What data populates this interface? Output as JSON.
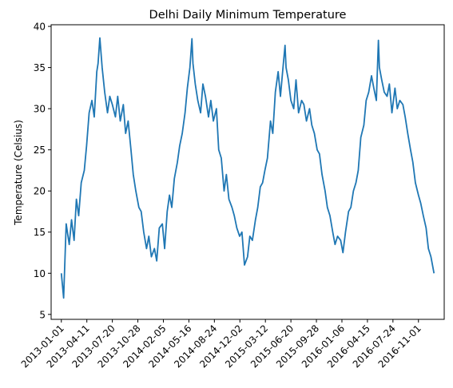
{
  "chart_data": {
    "type": "line",
    "title": "Delhi Daily Minimum Temperature",
    "xlabel": "",
    "ylabel": "Temperature (Celsius)",
    "xlim": [
      "2012-11-22",
      "2017-02-10"
    ],
    "ylim": [
      4.4,
      40.2
    ],
    "grid": false,
    "line_color": "#1f77b4",
    "x_ticks": [
      "2013-01-01",
      "2013-04-11",
      "2013-07-20",
      "2013-10-28",
      "2014-02-05",
      "2014-05-16",
      "2014-08-24",
      "2014-12-02",
      "2015-03-12",
      "2015-06-20",
      "2015-09-28",
      "2016-01-06",
      "2016-04-15",
      "2016-07-24",
      "2016-11-01"
    ],
    "y_ticks": [
      5,
      10,
      15,
      20,
      25,
      30,
      35,
      40
    ],
    "series": [
      {
        "x": [
          "2013-01-01",
          "2013-01-10",
          "2013-01-20",
          "2013-02-01",
          "2013-02-10",
          "2013-02-20",
          "2013-03-01",
          "2013-03-10",
          "2013-03-20",
          "2013-04-01",
          "2013-04-10",
          "2013-04-20",
          "2013-05-01",
          "2013-05-10",
          "2013-05-20",
          "2013-05-25",
          "2013-06-01",
          "2013-06-10",
          "2013-06-20",
          "2013-07-01",
          "2013-07-10",
          "2013-07-20",
          "2013-08-01",
          "2013-08-10",
          "2013-08-20",
          "2013-09-01",
          "2013-09-10",
          "2013-09-20",
          "2013-10-01",
          "2013-10-10",
          "2013-10-20",
          "2013-11-01",
          "2013-11-10",
          "2013-11-20",
          "2013-12-01",
          "2013-12-10",
          "2013-12-20",
          "2014-01-01",
          "2014-01-10",
          "2014-01-20",
          "2014-02-01",
          "2014-02-10",
          "2014-02-20",
          "2014-03-01",
          "2014-03-10",
          "2014-03-20",
          "2014-04-01",
          "2014-04-10",
          "2014-04-20",
          "2014-05-01",
          "2014-05-10",
          "2014-05-20",
          "2014-05-28",
          "2014-06-01",
          "2014-06-10",
          "2014-06-20",
          "2014-07-01",
          "2014-07-10",
          "2014-07-20",
          "2014-08-01",
          "2014-08-10",
          "2014-08-20",
          "2014-09-01",
          "2014-09-10",
          "2014-09-20",
          "2014-10-01",
          "2014-10-10",
          "2014-10-20",
          "2014-11-01",
          "2014-11-10",
          "2014-11-20",
          "2014-12-01",
          "2014-12-10",
          "2014-12-20",
          "2015-01-01",
          "2015-01-10",
          "2015-01-20",
          "2015-02-01",
          "2015-02-10",
          "2015-02-20",
          "2015-03-01",
          "2015-03-10",
          "2015-03-20",
          "2015-04-01",
          "2015-04-10",
          "2015-04-20",
          "2015-05-01",
          "2015-05-10",
          "2015-05-20",
          "2015-05-28",
          "2015-06-01",
          "2015-06-10",
          "2015-06-20",
          "2015-07-01",
          "2015-07-10",
          "2015-07-20",
          "2015-08-01",
          "2015-08-10",
          "2015-08-20",
          "2015-09-01",
          "2015-09-10",
          "2015-09-20",
          "2015-10-01",
          "2015-10-10",
          "2015-10-20",
          "2015-11-01",
          "2015-11-10",
          "2015-11-20",
          "2015-12-01",
          "2015-12-10",
          "2015-12-20",
          "2016-01-01",
          "2016-01-10",
          "2016-01-20",
          "2016-02-01",
          "2016-02-10",
          "2016-02-20",
          "2016-03-01",
          "2016-03-10",
          "2016-03-20",
          "2016-04-01",
          "2016-04-10",
          "2016-04-20",
          "2016-05-01",
          "2016-05-10",
          "2016-05-20",
          "2016-05-28",
          "2016-06-01",
          "2016-06-10",
          "2016-06-20",
          "2016-07-01",
          "2016-07-10",
          "2016-07-20",
          "2016-08-01",
          "2016-08-10",
          "2016-08-20",
          "2016-09-01",
          "2016-09-10",
          "2016-09-20",
          "2016-10-01",
          "2016-10-10",
          "2016-10-20",
          "2016-11-01",
          "2016-11-10",
          "2016-11-20",
          "2016-12-01",
          "2016-12-10",
          "2016-12-20",
          "2017-01-01"
        ],
        "values": [
          10.0,
          7.0,
          16.0,
          13.5,
          16.5,
          14.0,
          19.0,
          17.0,
          21.0,
          22.5,
          25.5,
          29.5,
          31.0,
          29.0,
          34.5,
          35.5,
          38.6,
          35.0,
          32.0,
          29.5,
          31.5,
          30.5,
          29.0,
          31.5,
          28.5,
          30.5,
          27.0,
          28.5,
          25.0,
          22.0,
          20.0,
          18.0,
          17.5,
          15.0,
          13.0,
          14.5,
          12.0,
          13.0,
          11.5,
          15.5,
          16.0,
          13.0,
          17.5,
          19.5,
          18.0,
          21.5,
          23.5,
          25.5,
          27.0,
          29.5,
          32.5,
          35.0,
          38.5,
          35.5,
          33.0,
          31.0,
          29.5,
          33.0,
          31.5,
          29.0,
          31.0,
          28.5,
          30.0,
          25.0,
          24.0,
          20.0,
          22.0,
          19.0,
          18.0,
          17.0,
          15.5,
          14.5,
          15.0,
          11.0,
          12.0,
          14.5,
          14.0,
          16.5,
          18.0,
          20.5,
          21.0,
          22.5,
          24.0,
          28.5,
          27.0,
          32.0,
          34.5,
          31.5,
          35.0,
          37.7,
          35.0,
          33.5,
          31.0,
          30.0,
          33.5,
          29.5,
          31.0,
          30.5,
          28.5,
          30.0,
          28.0,
          27.0,
          25.0,
          24.5,
          22.0,
          20.0,
          18.0,
          17.0,
          15.0,
          13.5,
          14.5,
          14.0,
          12.5,
          15.0,
          17.5,
          18.0,
          20.0,
          21.0,
          22.5,
          26.5,
          28.0,
          31.0,
          32.0,
          34.0,
          32.5,
          31.0,
          38.3,
          35.0,
          33.5,
          32.0,
          31.5,
          33.0,
          29.5,
          32.5,
          30.0,
          31.0,
          30.5,
          29.0,
          27.0,
          25.0,
          23.5,
          21.0,
          19.5,
          18.5,
          17.0,
          15.5,
          13.0,
          12.0,
          10.0
        ]
      }
    ]
  }
}
